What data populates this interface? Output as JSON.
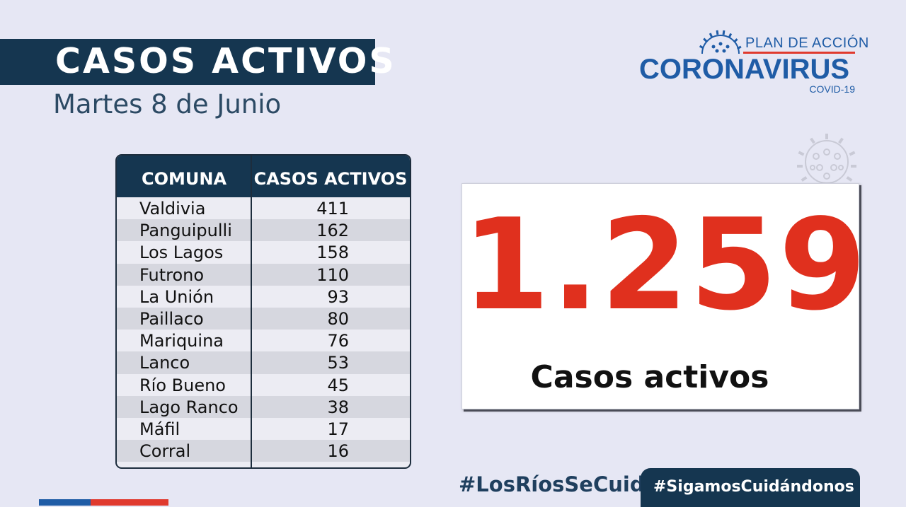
{
  "header": {
    "title": "CASOS ACTIVOS",
    "date": "Martes 8 de Junio"
  },
  "logo": {
    "plan": "PLAN DE ACCIÓN",
    "main": "CORONAVIRUS",
    "sub": "COVID-19",
    "icon": "coronavirus-icon"
  },
  "table": {
    "headers": [
      "COMUNA",
      "CASOS ACTIVOS"
    ],
    "rows": [
      {
        "comuna": "Valdivia",
        "casos": "411"
      },
      {
        "comuna": "Panguipulli",
        "casos": "162"
      },
      {
        "comuna": "Los Lagos",
        "casos": "158"
      },
      {
        "comuna": "Futrono",
        "casos": "110"
      },
      {
        "comuna": "La Unión",
        "casos": "93"
      },
      {
        "comuna": "Paillaco",
        "casos": "80"
      },
      {
        "comuna": "Mariquina",
        "casos": "76"
      },
      {
        "comuna": "Lanco",
        "casos": "53"
      },
      {
        "comuna": "Río Bueno",
        "casos": "45"
      },
      {
        "comuna": "Lago Ranco",
        "casos": "38"
      },
      {
        "comuna": "Máfil",
        "casos": "17"
      },
      {
        "comuna": "Corral",
        "casos": "16"
      }
    ]
  },
  "summary": {
    "total": "1.259",
    "label": "Casos activos"
  },
  "footer": {
    "hashtag_1": "#LosRíosSeCuida",
    "hashtag_2": "#SigamosCuidándonos"
  },
  "colors": {
    "background": "#e6e7f4",
    "navy": "#153650",
    "brand_blue": "#1f5ca6",
    "accent_red": "#e0301e"
  }
}
